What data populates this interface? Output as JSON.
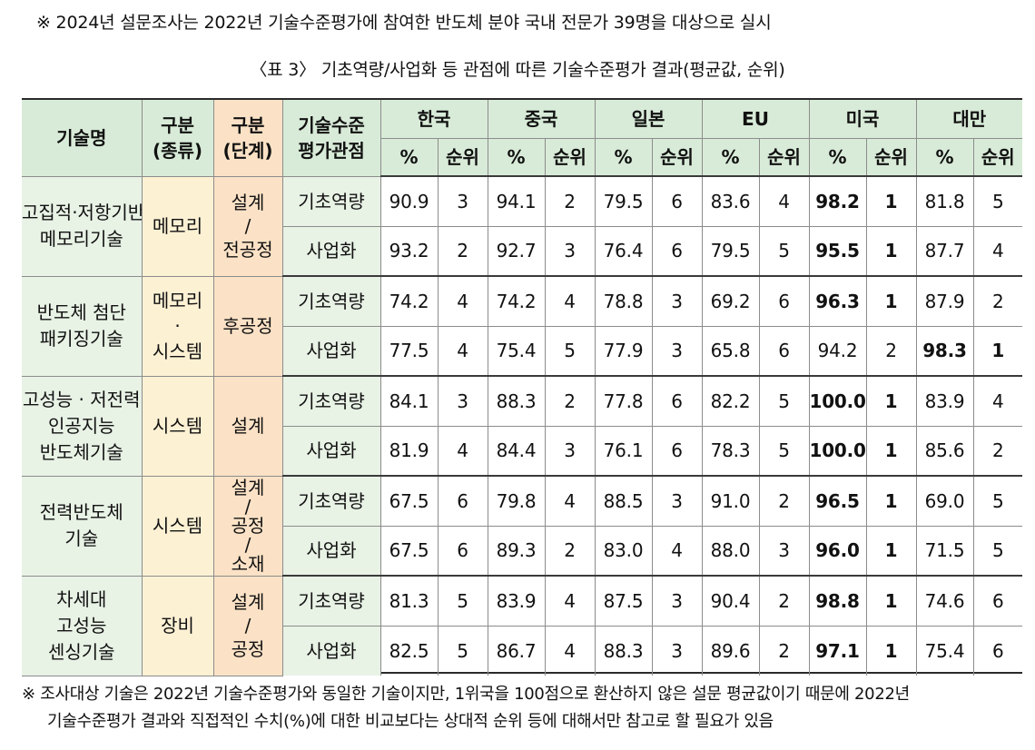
{
  "top_note": "※ 2024년 설문조사는 2022년 기술수준평가에 참여한 반도체 분야 국내 전문가 39명을 대상으로 실시",
  "caption": "〈표 3〉 기초역량/사업화 등 관점에 따른 기술수준평가 결과(평균값, 순위)",
  "header": {
    "tech_name": "기술명",
    "type_line1": "구분",
    "type_line2": "(종류)",
    "stage_line1": "구분",
    "stage_line2": "(단계)",
    "view_line1": "기술수준",
    "view_line2": "평가관점",
    "countries": [
      "한국",
      "중국",
      "일본",
      "EU",
      "미국",
      "대만"
    ],
    "pct": "%",
    "rank": "순위"
  },
  "groups": [
    {
      "name_lines": [
        "고집적·저항기반",
        "메모리기술"
      ],
      "type_lines": [
        "메모리"
      ],
      "stage_lines": [
        "설계",
        "/",
        "전공정"
      ],
      "rows": [
        {
          "view": "기초역량",
          "cells": [
            [
              "90.9",
              "3"
            ],
            [
              "94.1",
              "2"
            ],
            [
              "79.5",
              "6"
            ],
            [
              "83.6",
              "4"
            ],
            [
              "98.2",
              "1"
            ],
            [
              "81.8",
              "5"
            ]
          ],
          "bold_country": 4
        },
        {
          "view": "사업화",
          "cells": [
            [
              "93.2",
              "2"
            ],
            [
              "92.7",
              "3"
            ],
            [
              "76.4",
              "6"
            ],
            [
              "79.5",
              "5"
            ],
            [
              "95.5",
              "1"
            ],
            [
              "87.7",
              "4"
            ]
          ],
          "bold_country": 4
        }
      ]
    },
    {
      "name_lines": [
        "반도체 첨단",
        "패키징기술"
      ],
      "type_lines": [
        "메모리",
        "·",
        "시스템"
      ],
      "stage_lines": [
        "후공정"
      ],
      "rows": [
        {
          "view": "기초역량",
          "cells": [
            [
              "74.2",
              "4"
            ],
            [
              "74.2",
              "4"
            ],
            [
              "78.8",
              "3"
            ],
            [
              "69.2",
              "6"
            ],
            [
              "96.3",
              "1"
            ],
            [
              "87.9",
              "2"
            ]
          ],
          "bold_country": 4
        },
        {
          "view": "사업화",
          "cells": [
            [
              "77.5",
              "4"
            ],
            [
              "75.4",
              "5"
            ],
            [
              "77.9",
              "3"
            ],
            [
              "65.8",
              "6"
            ],
            [
              "94.2",
              "2"
            ],
            [
              "98.3",
              "1"
            ]
          ],
          "bold_country": 5
        }
      ]
    },
    {
      "name_lines": [
        "고성능 · 저전력",
        "인공지능",
        "반도체기술"
      ],
      "type_lines": [
        "시스템"
      ],
      "stage_lines": [
        "설계"
      ],
      "rows": [
        {
          "view": "기초역량",
          "cells": [
            [
              "84.1",
              "3"
            ],
            [
              "88.3",
              "2"
            ],
            [
              "77.8",
              "6"
            ],
            [
              "82.2",
              "5"
            ],
            [
              "100.0",
              "1"
            ],
            [
              "83.9",
              "4"
            ]
          ],
          "bold_country": 4
        },
        {
          "view": "사업화",
          "cells": [
            [
              "81.9",
              "4"
            ],
            [
              "84.4",
              "3"
            ],
            [
              "76.1",
              "6"
            ],
            [
              "78.3",
              "5"
            ],
            [
              "100.0",
              "1"
            ],
            [
              "85.6",
              "2"
            ]
          ],
          "bold_country": 4
        }
      ]
    },
    {
      "name_lines": [
        "전력반도체",
        "기술"
      ],
      "type_lines": [
        "시스템"
      ],
      "stage_lines": [
        "설계",
        "/",
        "공정",
        "/",
        "소재"
      ],
      "rows": [
        {
          "view": "기초역량",
          "cells": [
            [
              "67.5",
              "6"
            ],
            [
              "79.8",
              "4"
            ],
            [
              "88.5",
              "3"
            ],
            [
              "91.0",
              "2"
            ],
            [
              "96.5",
              "1"
            ],
            [
              "69.0",
              "5"
            ]
          ],
          "bold_country": 4
        },
        {
          "view": "사업화",
          "cells": [
            [
              "67.5",
              "6"
            ],
            [
              "89.3",
              "2"
            ],
            [
              "83.0",
              "4"
            ],
            [
              "88.0",
              "3"
            ],
            [
              "96.0",
              "1"
            ],
            [
              "71.5",
              "5"
            ]
          ],
          "bold_country": 4
        }
      ]
    },
    {
      "name_lines": [
        "차세대",
        "고성능",
        "센싱기술"
      ],
      "type_lines": [
        "장비"
      ],
      "stage_lines": [
        "설계",
        "/",
        "공정"
      ],
      "rows": [
        {
          "view": "기초역량",
          "cells": [
            [
              "81.3",
              "5"
            ],
            [
              "83.9",
              "4"
            ],
            [
              "87.5",
              "3"
            ],
            [
              "90.4",
              "2"
            ],
            [
              "98.8",
              "1"
            ],
            [
              "74.6",
              "6"
            ]
          ],
          "bold_country": 4
        },
        {
          "view": "사업화",
          "cells": [
            [
              "82.5",
              "5"
            ],
            [
              "86.7",
              "4"
            ],
            [
              "88.3",
              "3"
            ],
            [
              "89.6",
              "2"
            ],
            [
              "97.1",
              "1"
            ],
            [
              "75.4",
              "6"
            ]
          ],
          "bold_country": 4
        }
      ]
    }
  ],
  "footnote_line1": "※ 조사대상 기술은 2022년 기술수준평가와 동일한 기술이지만, 1위국을 100점으로 환산하지 않은 설문 평균값이기 때문에 2022년",
  "footnote_line2": "기술수준평가 결과와 직접적인 수치(%)에 대한 비교보다는 상대적 순위 등에 대해서만 참고로 할 필요가 있음"
}
